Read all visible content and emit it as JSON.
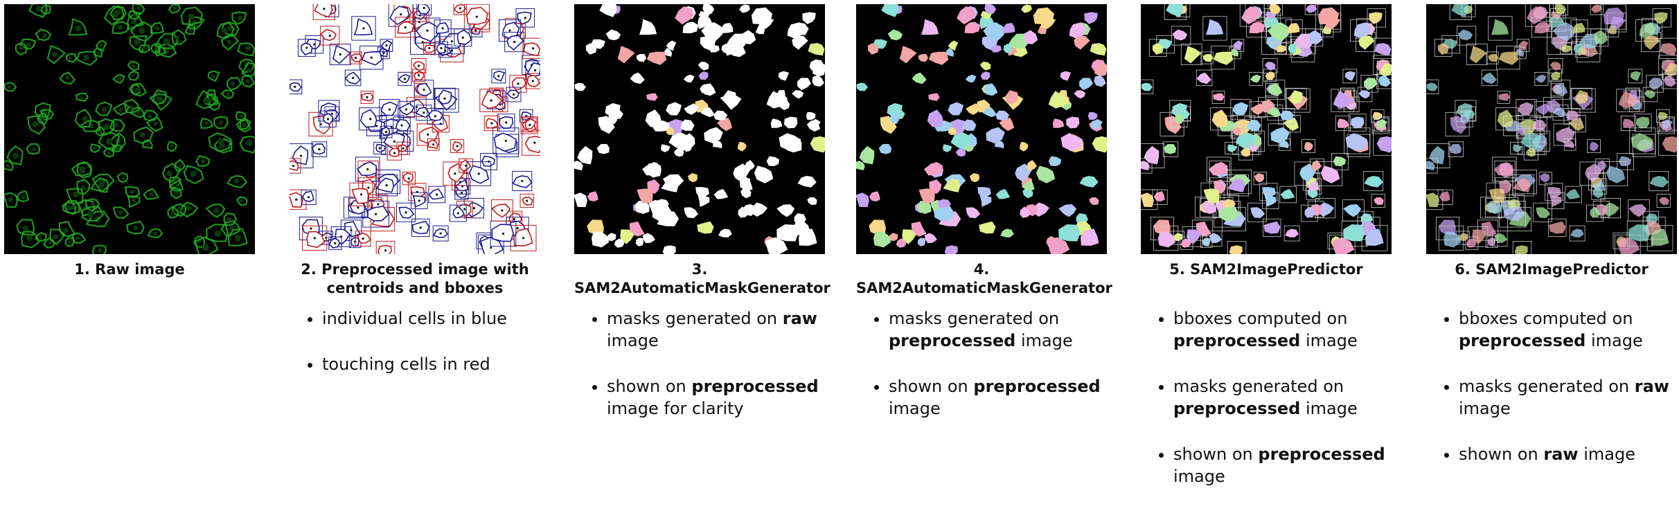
{
  "panels": [
    {
      "id": "p1",
      "caption": "1. Raw image",
      "bullets": []
    },
    {
      "id": "p2",
      "caption": "2. Preprocessed image with centroids and bboxes",
      "bullets": [
        {
          "parts": [
            {
              "t": "individual cells in blue",
              "b": false
            }
          ]
        },
        {
          "parts": [
            {
              "t": "touching cells in red",
              "b": false
            }
          ]
        }
      ]
    },
    {
      "id": "p3",
      "caption": "3. SAM2AutomaticMaskGenerator",
      "bullets": [
        {
          "parts": [
            {
              "t": "masks generated on ",
              "b": false
            },
            {
              "t": "raw",
              "b": true
            },
            {
              "t": " image",
              "b": false
            }
          ]
        },
        {
          "parts": [
            {
              "t": "shown on ",
              "b": false
            },
            {
              "t": "preprocessed",
              "b": true
            },
            {
              "t": " image for clarity",
              "b": false
            }
          ]
        }
      ]
    },
    {
      "id": "p4",
      "caption": "4. SAM2AutomaticMaskGenerator",
      "bullets": [
        {
          "parts": [
            {
              "t": "masks generated on ",
              "b": false
            },
            {
              "t": "preprocessed",
              "b": true
            },
            {
              "t": " image",
              "b": false
            }
          ]
        },
        {
          "parts": [
            {
              "t": "shown on ",
              "b": false
            },
            {
              "t": "preprocessed",
              "b": true
            },
            {
              "t": " image",
              "b": false
            }
          ]
        }
      ]
    },
    {
      "id": "p5",
      "caption": "5. SAM2ImagePredictor",
      "bullets": [
        {
          "parts": [
            {
              "t": "bboxes computed on ",
              "b": false
            },
            {
              "t": "preprocessed",
              "b": true
            },
            {
              "t": " image",
              "b": false
            }
          ]
        },
        {
          "parts": [
            {
              "t": "masks generated on ",
              "b": false
            },
            {
              "t": "preprocessed",
              "b": true
            },
            {
              "t": " image",
              "b": false
            }
          ]
        },
        {
          "parts": [
            {
              "t": "shown on ",
              "b": false
            },
            {
              "t": "preprocessed",
              "b": true
            },
            {
              "t": " image",
              "b": false
            }
          ]
        }
      ]
    },
    {
      "id": "p6",
      "caption": "6. SAM2ImagePredictor",
      "bullets": [
        {
          "parts": [
            {
              "t": "bboxes computed on ",
              "b": false
            },
            {
              "t": "preprocessed",
              "b": true
            },
            {
              "t": " image",
              "b": false
            }
          ]
        },
        {
          "parts": [
            {
              "t": "masks generated on ",
              "b": false
            },
            {
              "t": "raw",
              "b": true
            },
            {
              "t": " image",
              "b": false
            }
          ]
        },
        {
          "parts": [
            {
              "t": "shown on ",
              "b": false
            },
            {
              "t": "raw",
              "b": true
            },
            {
              "t": " image",
              "b": false
            }
          ]
        }
      ]
    }
  ],
  "colors": {
    "raw_green": "#22b022",
    "raw_frame": "#8a63d2",
    "individual_cell": "#1a1a8c",
    "touching_cell": "#c01818",
    "mask_palette": [
      "#f2a0c8",
      "#9fd0f0",
      "#f7d98a",
      "#a8e6a0",
      "#c7a2f0",
      "#8ce0d8",
      "#f3a6a6",
      "#b5c4f5",
      "#e0f08a",
      "#f0b8f0"
    ]
  }
}
